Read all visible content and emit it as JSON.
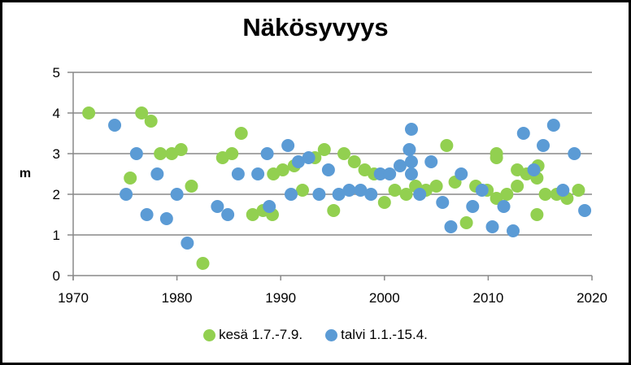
{
  "chart_data": {
    "type": "scatter",
    "title": "Näkösyvyys",
    "xlabel": "",
    "ylabel": "m",
    "xlim": [
      1970,
      2020
    ],
    "ylim": [
      0,
      5
    ],
    "xticks": [
      1970,
      1980,
      1990,
      2000,
      2010,
      2020
    ],
    "yticks": [
      0,
      1,
      2,
      3,
      4,
      5
    ],
    "grid": "horizontal",
    "legend_position": "bottom",
    "series": [
      {
        "name": "kesä 1.7.-7.9.",
        "color": "#92D050",
        "points": [
          [
            1971.5,
            4.0
          ],
          [
            1975.5,
            2.4
          ],
          [
            1976.6,
            4.0
          ],
          [
            1977.5,
            3.8
          ],
          [
            1978.4,
            3.0
          ],
          [
            1979.5,
            3.0
          ],
          [
            1980.4,
            3.1
          ],
          [
            1981.4,
            2.2
          ],
          [
            1982.5,
            0.3
          ],
          [
            1984.4,
            2.9
          ],
          [
            1985.3,
            3.0
          ],
          [
            1986.2,
            3.5
          ],
          [
            1987.3,
            1.5
          ],
          [
            1988.3,
            1.6
          ],
          [
            1989.2,
            1.5
          ],
          [
            1989.3,
            2.5
          ],
          [
            1990.2,
            2.6
          ],
          [
            1991.3,
            2.7
          ],
          [
            1992.1,
            2.1
          ],
          [
            1993.3,
            2.9
          ],
          [
            1994.2,
            3.1
          ],
          [
            1995.1,
            1.6
          ],
          [
            1996.1,
            3.0
          ],
          [
            1997.1,
            2.8
          ],
          [
            1998.1,
            2.6
          ],
          [
            1999.0,
            2.5
          ],
          [
            2000.0,
            1.8
          ],
          [
            2001.0,
            2.1
          ],
          [
            2002.1,
            2.0
          ],
          [
            2003.0,
            2.2
          ],
          [
            2004.0,
            2.1
          ],
          [
            2005.0,
            2.2
          ],
          [
            2006.0,
            3.2
          ],
          [
            2006.8,
            2.3
          ],
          [
            2007.9,
            1.3
          ],
          [
            2008.8,
            2.2
          ],
          [
            2009.9,
            2.1
          ],
          [
            2010.8,
            3.0
          ],
          [
            2010.8,
            2.9
          ],
          [
            2010.8,
            1.9
          ],
          [
            2011.8,
            2.0
          ],
          [
            2012.8,
            2.6
          ],
          [
            2012.8,
            2.2
          ],
          [
            2013.7,
            2.5
          ],
          [
            2014.7,
            2.4
          ],
          [
            2014.8,
            2.7
          ],
          [
            2014.7,
            1.5
          ],
          [
            2015.5,
            2.0
          ],
          [
            2016.6,
            2.0
          ],
          [
            2017.6,
            1.9
          ],
          [
            2018.7,
            2.1
          ]
        ]
      },
      {
        "name": "talvi 1.1.-15.4.",
        "color": "#5B9BD5",
        "points": [
          [
            1974.0,
            3.7
          ],
          [
            1975.1,
            2.0
          ],
          [
            1976.1,
            3.0
          ],
          [
            1977.1,
            1.5
          ],
          [
            1978.1,
            2.5
          ],
          [
            1979.0,
            1.4
          ],
          [
            1980.0,
            2.0
          ],
          [
            1981.0,
            0.8
          ],
          [
            1983.9,
            1.7
          ],
          [
            1984.9,
            1.5
          ],
          [
            1985.9,
            2.5
          ],
          [
            1987.8,
            2.5
          ],
          [
            1988.7,
            3.0
          ],
          [
            1988.9,
            1.7
          ],
          [
            1990.7,
            3.2
          ],
          [
            1991.0,
            2.0
          ],
          [
            1991.7,
            2.8
          ],
          [
            1992.7,
            2.9
          ],
          [
            1993.7,
            2.0
          ],
          [
            1994.6,
            2.6
          ],
          [
            1995.6,
            2.0
          ],
          [
            1996.6,
            2.1
          ],
          [
            1997.7,
            2.1
          ],
          [
            1998.7,
            2.0
          ],
          [
            1999.6,
            2.5
          ],
          [
            2000.5,
            2.5
          ],
          [
            2001.5,
            2.7
          ],
          [
            2002.4,
            3.1
          ],
          [
            2002.6,
            3.6
          ],
          [
            2002.6,
            2.8
          ],
          [
            2002.6,
            2.5
          ],
          [
            2003.4,
            2.0
          ],
          [
            2004.5,
            2.8
          ],
          [
            2005.6,
            1.8
          ],
          [
            2006.4,
            1.2
          ],
          [
            2007.4,
            2.5
          ],
          [
            2008.5,
            1.7
          ],
          [
            2009.4,
            2.1
          ],
          [
            2010.4,
            1.2
          ],
          [
            2011.5,
            1.7
          ],
          [
            2012.4,
            1.1
          ],
          [
            2013.4,
            3.5
          ],
          [
            2014.4,
            2.6
          ],
          [
            2015.3,
            3.2
          ],
          [
            2016.3,
            3.7
          ],
          [
            2017.2,
            2.1
          ],
          [
            2018.3,
            3.0
          ],
          [
            2019.3,
            1.6
          ]
        ]
      }
    ]
  },
  "legend": {
    "items": [
      {
        "label": "kesä 1.7.-7.9.",
        "color": "#92D050"
      },
      {
        "label": "talvi 1.1.-15.4.",
        "color": "#5B9BD5"
      }
    ]
  },
  "style": {
    "gridline_color": "#898989",
    "axis_color": "#898989"
  }
}
